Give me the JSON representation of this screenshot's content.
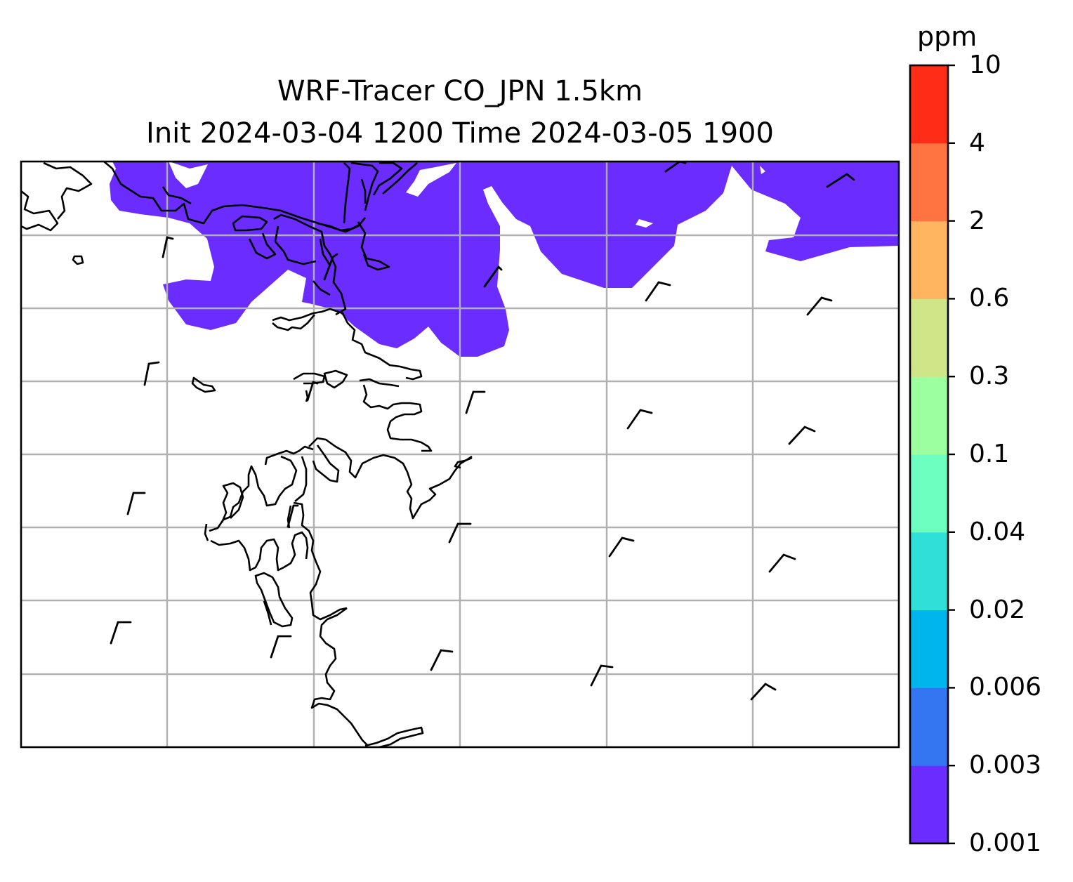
{
  "title": {
    "line1": "WRF-Tracer CO_JPN 1.5km",
    "line2": "Init 2024-03-04 1200 Time 2024-03-05 1900"
  },
  "colorbar": {
    "unit": "ppm",
    "levels": [
      "0.001",
      "0.003",
      "0.006",
      "0.02",
      "0.04",
      "0.1",
      "0.3",
      "0.6",
      "2",
      "4",
      "10"
    ],
    "colors": [
      "#6a2cff",
      "#3476f2",
      "#00b4ec",
      "#30e0d8",
      "#6cffc0",
      "#9cffa0",
      "#d0e488",
      "#ffb460",
      "#ff7440",
      "#ff2c18"
    ]
  },
  "map": {
    "filled_contour_color": "#6a2cff",
    "gridline_color": "#b0b0b0",
    "coastline_color": "#000000",
    "filled_contour_level": "0.001-0.003 ppm band over northern part of domain"
  }
}
